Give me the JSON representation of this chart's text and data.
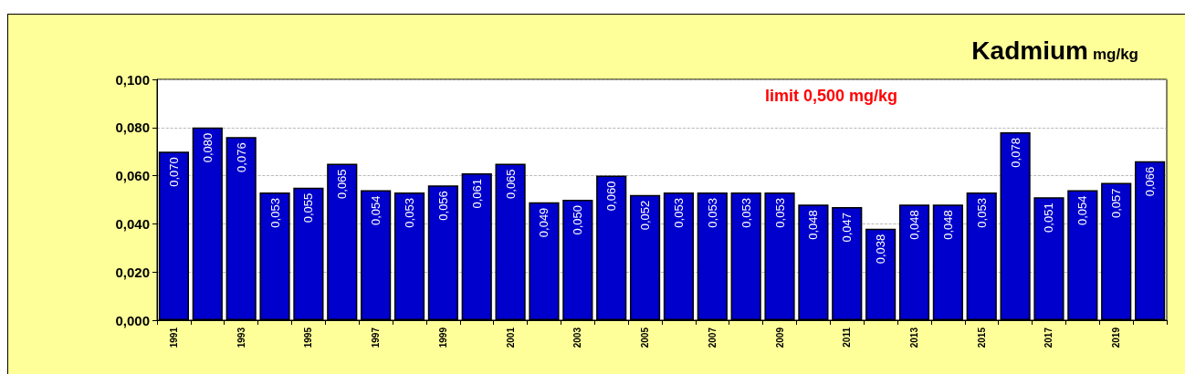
{
  "chart_data": {
    "type": "bar",
    "title": "Kadmium",
    "subtitle": "mg/kg",
    "annotations": [
      "limit 0,500 mg/kg"
    ],
    "categories": [
      "1991",
      null,
      "1993",
      null,
      "1995",
      null,
      "1997",
      null,
      "1999",
      null,
      "2001",
      null,
      "2003",
      null,
      "2005",
      null,
      "2007",
      null,
      "2009",
      null,
      "2011",
      null,
      "2013",
      null,
      "2015",
      null,
      "2017",
      null,
      "2019",
      null
    ],
    "values": [
      0.07,
      0.08,
      0.076,
      0.053,
      0.055,
      0.065,
      0.054,
      0.053,
      0.056,
      0.061,
      0.065,
      0.049,
      0.05,
      0.06,
      0.052,
      0.053,
      0.053,
      0.053,
      0.053,
      0.048,
      0.047,
      0.038,
      0.048,
      0.048,
      0.053,
      0.078,
      0.051,
      0.054,
      0.057,
      0.066
    ],
    "value_labels": [
      "0,070",
      "0,080",
      "0,076",
      "0,053",
      "0,055",
      "0,065",
      "0,054",
      "0,053",
      "0,056",
      "0,061",
      "0,065",
      "0,049",
      "0,050",
      "0,060",
      "0,052",
      "0,053",
      "0,053",
      "0,053",
      "0,053",
      "0,048",
      "0,047",
      "0,038",
      "0,048",
      "0,048",
      "0,053",
      "0,078",
      "0,051",
      "0,054",
      "0,057",
      "0,066"
    ],
    "color": "#0000cc",
    "ylim": [
      0,
      0.1
    ],
    "yticks": [
      {
        "value": 0,
        "label": "0,000"
      },
      {
        "value": 0.02,
        "label": "0,020"
      },
      {
        "value": 0.04,
        "label": "0,040"
      },
      {
        "value": 0.06,
        "label": "0,060"
      },
      {
        "value": 0.08,
        "label": "0,080"
      },
      {
        "value": 0.1,
        "label": "0,100"
      }
    ],
    "grid": "y"
  }
}
